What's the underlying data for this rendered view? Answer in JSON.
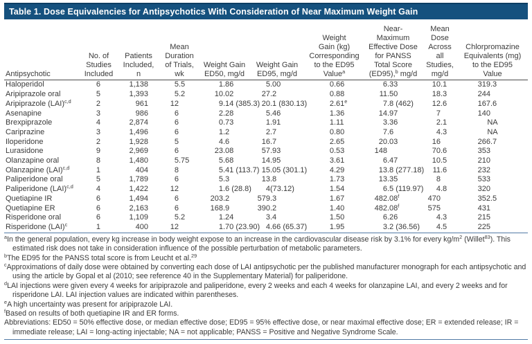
{
  "title": "Table 1. Dose Equivalencies for Antipsychotics With Consideration of Near Maximum Weight Gain",
  "colors": {
    "title_bar": "#15517e",
    "title_bar_edge": "#0d3f63",
    "title_text": "#ffffff",
    "rule_dark": "#4a4a4a",
    "rule_blue": "#5179a5",
    "text": "#3a3a3a"
  },
  "table": {
    "columns": [
      {
        "key": "antipsychotic",
        "label": "Antipsychotic"
      },
      {
        "key": "studies",
        "label": "No. of\nStudies\nIncluded"
      },
      {
        "key": "patients",
        "label": "Patients\nIncluded,\nn"
      },
      {
        "key": "duration",
        "label": "Mean\nDuration\nof Trials,\nwk"
      },
      {
        "key": "ed50",
        "label": "Weight Gain\nED50, mg/d"
      },
      {
        "key": "ed95",
        "label": "Weight Gain\nED95, mg/d"
      },
      {
        "key": "weight-gain-ed95",
        "label": "Weight\nGain (kg)\nCorresponding\nto the ED95\nValue^a"
      },
      {
        "key": "panss-ed95",
        "label": "Near-\nMaximum\nEffective Dose\nfor PANSS\nTotal Score\n(ED95),^b mg/d"
      },
      {
        "key": "mean-dose",
        "label": "Mean\nDose\nAcross\nall\nStudies,\nmg/d"
      },
      {
        "key": "cpz-equivalents",
        "label": "Chlorpromazine\nEquivalents (mg)\nto the ED95\nValue"
      }
    ],
    "rows": [
      {
        "drug": "Haloperidol",
        "cells": [
          "6",
          "1,138",
          "5.5",
          "1.86",
          "5.00",
          "0.66",
          "6.33",
          "10.1",
          "319.3"
        ]
      },
      {
        "drug": "Aripiprazole oral",
        "cells": [
          "5",
          "1,393",
          "5.2",
          "10.02",
          "27.2",
          "0.88",
          "11.50",
          "18.3",
          "244"
        ]
      },
      {
        "drug": "Aripiprazole (LAI)^c,d",
        "cells": [
          "2",
          "961",
          "12",
          "9.14 (385.3)",
          "20.1 (830.13)",
          "2.61^e",
          "7.8 (462)",
          "12.6",
          "167.6"
        ]
      },
      {
        "drug": "Asenapine",
        "cells": [
          "3",
          "986",
          "6",
          "2.28",
          "5.46",
          "1.36",
          "14.97",
          "7",
          "140"
        ]
      },
      {
        "drug": "Brexpiprazole",
        "cells": [
          "4",
          "2,874",
          "6",
          "0.73",
          "1.91",
          "1.11",
          "3.36",
          "2.1",
          "NA"
        ]
      },
      {
        "drug": "Cariprazine",
        "cells": [
          "3",
          "1,496",
          "6",
          "1.2",
          "2.7",
          "0.80",
          "7.6",
          "4.3",
          "NA"
        ]
      },
      {
        "drug": "Iloperidone",
        "cells": [
          "2",
          "1,928",
          "5",
          "4.6",
          "16.7",
          "2.65",
          "20.03",
          "16",
          "266.7"
        ]
      },
      {
        "drug": "Lurasidone",
        "cells": [
          "9",
          "2,969",
          "6",
          "23.08",
          "57.93",
          "0.53",
          "148",
          "70.6",
          "353"
        ]
      },
      {
        "drug": "Olanzapine oral",
        "cells": [
          "8",
          "1,480",
          "5.75",
          "5.68",
          "14.95",
          "3.61",
          "6.47",
          "10.5",
          "210"
        ]
      },
      {
        "drug": "Olanzapine (LAI)^c,d",
        "cells": [
          "1",
          "404",
          "8",
          "5.41 (113.7)",
          "15.05 (301.1)",
          "4.29",
          "13.8 (277.18)",
          "11.6",
          "232"
        ]
      },
      {
        "drug": "Paliperidone oral",
        "cells": [
          "5",
          "1,789",
          "6",
          "5.3",
          "13.8",
          "1.73",
          "13.35",
          "8",
          "533"
        ]
      },
      {
        "drug": "Paliperidone (LAI)^c,d",
        "cells": [
          "4",
          "1,422",
          "12",
          "1.6 (28.8)",
          "4 (73.12)",
          "1.54",
          "6.5 (119.97)",
          "4.8",
          "320"
        ]
      },
      {
        "drug": "Quetiapine IR",
        "cells": [
          "6",
          "1,494",
          "6",
          "203.2",
          "579.3",
          "1.67",
          "482.08^f",
          "470",
          "352.5"
        ]
      },
      {
        "drug": "Quetiapine ER",
        "cells": [
          "6",
          "2,163",
          "6",
          "168.9",
          "390.2",
          "1.40",
          "482.08^f",
          "575",
          "431"
        ]
      },
      {
        "drug": "Risperidone oral",
        "cells": [
          "6",
          "1,109",
          "5.2",
          "1.24",
          "3.4",
          "1.50",
          "6.26",
          "4.3",
          "215"
        ]
      },
      {
        "drug": "Risperidone (LAI)^c",
        "cells": [
          "1",
          "400",
          "12",
          "1.70 (23.90)",
          "4.66 (65.37)",
          "1.95",
          "3.2 (36.56)",
          "4.5",
          "225"
        ]
      }
    ]
  },
  "footnotes": [
    {
      "id": "a",
      "text": "In the general population, every kg increase in body weight expose to an increase in the cardiovascular disease risk by 3.1% for every kg/m^2 (Willet^83). This estimated risk does not take in consideration influence of the possible perturbation of metabolic parameters."
    },
    {
      "id": "b",
      "text": "The ED95 for the PANSS total score is from Leucht et al.^29"
    },
    {
      "id": "c",
      "text": "Approximations of daily dose were obtained by converting each dose of LAI antipsychotic per the published manufacturer monograph for each antipsychotic and using the article by Gopal et al (2010; see reference 40 in the Supplementary Material) for paliperidone."
    },
    {
      "id": "d",
      "text": "LAI injections were given every 4 weeks for aripiprazole and paliperidone, every 2 weeks and each 4 weeks for olanzapine LAI, and every 2 weeks and for risperidone LAI. LAI injection values are indicated within parentheses."
    },
    {
      "id": "e",
      "text": "A high uncertainty was present for aripiprazole LAI."
    },
    {
      "id": "f",
      "text": "Based on results of both quetiapine IR and ER forms."
    }
  ],
  "abbreviations": "Abbreviations: ED50 = 50% effective dose, or median effective dose; ED95 = 95% effective dose, or near maximal effective dose; ER = extended release; IR = immediate release; LAI = long-acting injectable; NA = not applicable; PANSS = Positive and Negative Syndrome Scale."
}
